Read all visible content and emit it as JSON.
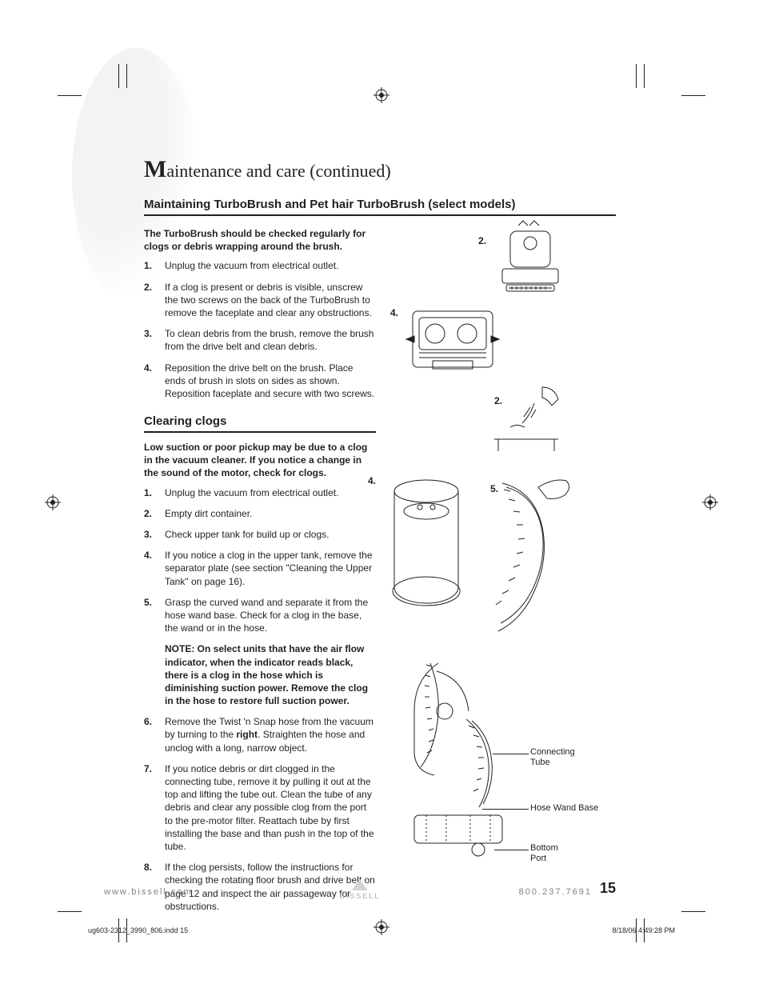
{
  "crop_marks": true,
  "title_prefix": "M",
  "title_rest": "aintenance and care (continued)",
  "section1": {
    "heading": "Maintaining TurboBrush and Pet hair TurboBrush (select models)",
    "lead": "The TurboBrush should be checked regularly for clogs or debris wrapping around the brush.",
    "steps": [
      "Unplug the vacuum from electrical outlet.",
      "If a clog is present or debris is visible, unscrew the two screws on the back of the TurboBrush to remove the faceplate and clear any obstructions.",
      "To clean debris from the brush, remove the brush from the drive belt and clean debris.",
      "Reposition the drive belt on the brush. Place ends of brush in slots on sides as shown. Reposition faceplate and secure with two screws."
    ]
  },
  "section2": {
    "heading": "Clearing clogs",
    "lead": "Low suction or poor pickup may be due to a clog in the vacuum cleaner. If you notice a change in the sound of the motor, check for clogs.",
    "steps": [
      "Unplug the vacuum from electrical outlet.",
      "Empty dirt container.",
      "Check upper tank for build up or clogs.",
      "If you notice a clog in the upper tank, remove the separator plate (see section \"Cleaning the Upper Tank\" on page 16).",
      "Grasp the curved wand and separate it from the hose wand base. Check for a clog in the base, the wand or in the hose."
    ],
    "note": "NOTE: On select units that have the air flow indicator, when the indicator reads black, there is a clog in the hose which is diminishing suction power. Remove the clog in the hose to restore full suction power.",
    "steps_cont": [
      "Remove the Twist 'n Snap hose from the vacuum by turning to the <b>right</b>. Straighten the hose and unclog with a long, narrow object.",
      "If you notice debris or dirt clogged in the connecting tube, remove it by pulling it out at the top and lifting the tube out. Clean the tube of any debris and clear any possible clog from the port to the pre-motor filter. Reattach tube by first installing the base and than push in the top of the tube.",
      "If the clog persists, follow the instructions for checking the rotating floor brush and drive belt on page 12 and inspect the air passageway for obstructions."
    ]
  },
  "diagram_labels": {
    "d1": "2.",
    "d2": "4.",
    "d3": "2.",
    "d4": "4.",
    "d5": "5."
  },
  "callouts": {
    "connecting_tube": "Connecting\nTube",
    "hose_wand_base": "Hose Wand Base",
    "bottom_port": "Bottom\nPort"
  },
  "footer": {
    "url": "www.bissell.com",
    "phone": "800.237.7691",
    "page": "15",
    "brand": "BISSELL"
  },
  "slug": {
    "file": "ug603-2312_3990_806.indd   15",
    "date": "8/18/06   4:49:28 PM"
  },
  "colors": {
    "text": "#231f20",
    "muted": "#808285",
    "light": "#d1d3d4"
  }
}
